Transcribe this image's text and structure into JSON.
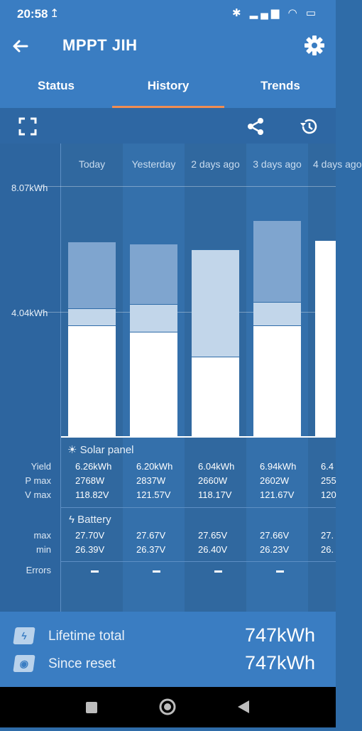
{
  "status_bar": {
    "time": "20:58",
    "upload_glyph": "↥",
    "indicators": "✱ ▂▄▆ ◠ ▭"
  },
  "app_bar": {
    "title": "MPPT JIH",
    "back_icon": "arrow-left",
    "settings_icon": "gear"
  },
  "tabs": [
    {
      "label": "Status",
      "active": false
    },
    {
      "label": "History",
      "active": true
    },
    {
      "label": "Trends",
      "active": false
    }
  ],
  "toolbar": {
    "icons": [
      "fullscreen",
      "share",
      "history"
    ]
  },
  "y_axis": {
    "labels": [
      "8.07kWh",
      "4.04kWh"
    ]
  },
  "days": [
    {
      "label": "Today",
      "yield": "6.26kWh",
      "pmax": "2768W",
      "vmax": "118.82V",
      "bmax": "27.70V",
      "bmin": "26.39V",
      "errors": "–"
    },
    {
      "label": "Yesterday",
      "yield": "6.20kWh",
      "pmax": "2837W",
      "vmax": "121.57V",
      "bmax": "27.67V",
      "bmin": "26.37V",
      "errors": "–"
    },
    {
      "label": "2 days ago",
      "yield": "6.04kWh",
      "pmax": "2660W",
      "vmax": "118.17V",
      "bmax": "27.65V",
      "bmin": "26.40V",
      "errors": "–"
    },
    {
      "label": "3 days ago",
      "yield": "6.94kWh",
      "pmax": "2602W",
      "vmax": "121.67V",
      "bmax": "27.66V",
      "bmin": "26.23V",
      "errors": "–"
    },
    {
      "label": "4 days ago",
      "yield": "6.4",
      "pmax": "255",
      "vmax": "120",
      "bmax": "27.",
      "bmin": "26.",
      "errors": ""
    }
  ],
  "solar_section": {
    "title": "Solar panel",
    "icon": "sun",
    "rows": [
      "Yield",
      "P max",
      "V max"
    ]
  },
  "battery_section": {
    "title": "Battery",
    "icon": "lightning",
    "rows": [
      "max",
      "min"
    ]
  },
  "errors_label": "Errors",
  "totals": [
    {
      "label": "Lifetime total",
      "value": "747kWh",
      "icon": "lightning-badge"
    },
    {
      "label": "Since reset",
      "value": "747kWh",
      "icon": "target-badge"
    }
  ],
  "nav": {
    "buttons": [
      "recents",
      "home",
      "back"
    ]
  },
  "chart_data": {
    "type": "bar",
    "stacked": true,
    "categories": [
      "Today",
      "Yesterday",
      "2 days ago",
      "3 days ago",
      "4 days ago"
    ],
    "y_unit": "kWh",
    "ylim": [
      0,
      8.07
    ],
    "y_ticks": [
      4.04,
      8.07
    ],
    "series": [
      {
        "color": "#ffffff",
        "values": [
          3.55,
          3.35,
          2.55,
          3.55,
          6.3
        ]
      },
      {
        "color": "#c2d6ea",
        "values": [
          0.55,
          0.9,
          3.45,
          0.75,
          0
        ]
      },
      {
        "color": "#7fa5cf",
        "values": [
          2.16,
          1.95,
          0.04,
          2.64,
          0
        ]
      }
    ]
  }
}
